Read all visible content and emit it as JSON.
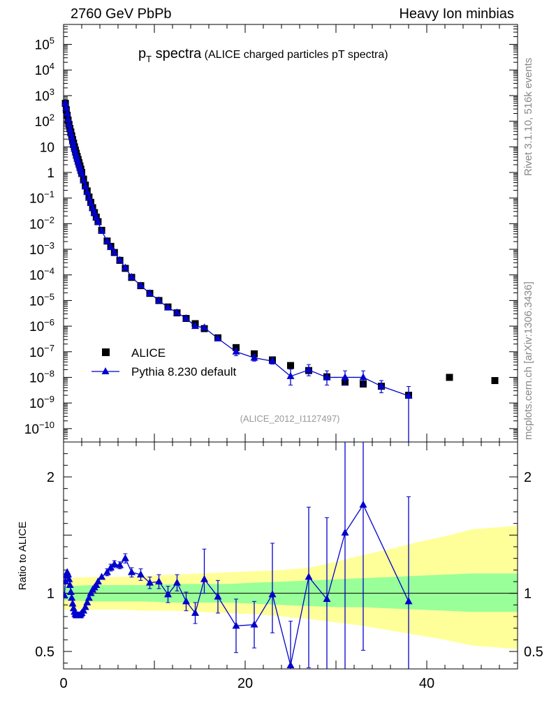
{
  "header": {
    "left": "2760 GeV PbPb",
    "right": "Heavy Ion minbias"
  },
  "side_labels": {
    "rivet": "Rivet 3.1.10,  516k events",
    "mcplots": "mcplots.cern.ch [arXiv:1306.3436]"
  },
  "colors": {
    "data": "#000000",
    "mc": "#0000cc",
    "band_inner": "#99ff99",
    "band_outer": "#ffff99"
  },
  "chart_data": [
    {
      "type": "scatter",
      "title_main": "p",
      "title_sub": "T",
      "title_main_suffix": " spectra",
      "title_paren": "(ALICE charged particles pT spectra)",
      "watermark": "(ALICE_2012_I1127497)",
      "yscale": "log",
      "xlim": [
        0,
        50
      ],
      "ylim": [
        3e-11,
        600000.0
      ],
      "yticks": [
        {
          "v": 100000.0,
          "m": "10",
          "e": "5"
        },
        {
          "v": 10000.0,
          "m": "10",
          "e": "4"
        },
        {
          "v": 1000.0,
          "m": "10",
          "e": "3"
        },
        {
          "v": 100.0,
          "m": "10",
          "e": "2"
        },
        {
          "v": 10,
          "m": "10",
          "e": ""
        },
        {
          "v": 1,
          "m": "1",
          "e": ""
        },
        {
          "v": 0.1,
          "m": "10",
          "e": "−1"
        },
        {
          "v": 0.01,
          "m": "10",
          "e": "−2"
        },
        {
          "v": 0.001,
          "m": "10",
          "e": "−3"
        },
        {
          "v": 0.0001,
          "m": "10",
          "e": "−4"
        },
        {
          "v": 1e-05,
          "m": "10",
          "e": "−5"
        },
        {
          "v": 1e-06,
          "m": "10",
          "e": "−6"
        },
        {
          "v": 1e-07,
          "m": "10",
          "e": "−7"
        },
        {
          "v": 1e-08,
          "m": "10",
          "e": "−8"
        },
        {
          "v": 1e-09,
          "m": "10",
          "e": "−9"
        },
        {
          "v": 1e-10,
          "m": "10",
          "e": "−10"
        }
      ],
      "legend": [
        "ALICE",
        "Pythia 8.230 default"
      ],
      "legend_position": "lower-left",
      "series": [
        {
          "name": "ALICE",
          "marker": "square",
          "x": [
            0.2,
            0.3,
            0.4,
            0.5,
            0.6,
            0.7,
            0.8,
            0.9,
            1.0,
            1.1,
            1.2,
            1.3,
            1.4,
            1.5,
            1.6,
            1.7,
            1.8,
            1.9,
            2.0,
            2.2,
            2.4,
            2.6,
            2.8,
            3.0,
            3.2,
            3.4,
            3.6,
            3.8,
            4.2,
            4.8,
            5.2,
            5.6,
            6.2,
            6.8,
            7.5,
            8.5,
            9.5,
            10.5,
            11.5,
            12.5,
            13.5,
            14.5,
            15.5,
            17.0,
            19.0,
            21.0,
            23.0,
            25.0,
            27.0,
            29.0,
            31.0,
            33.0,
            35.0,
            38.0,
            42.5,
            47.5
          ],
          "y": [
            500,
            280,
            170,
            110,
            75,
            52,
            38,
            27,
            19,
            14,
            10,
            7.5,
            5.6,
            4.2,
            3.2,
            2.4,
            1.8,
            1.35,
            1.0,
            0.55,
            0.32,
            0.19,
            0.11,
            0.068,
            0.042,
            0.027,
            0.018,
            0.012,
            0.0055,
            0.0021,
            0.0013,
            0.00075,
            0.00037,
            0.00018,
            8e-05,
            3.8e-05,
            1.9e-05,
            1e-05,
            5.6e-06,
            3.3e-06,
            2e-06,
            1.25e-06,
            8e-07,
            3.5e-07,
            1.45e-07,
            8.3e-08,
            4.8e-08,
            2.9e-08,
            1.85e-08,
            1.05e-08,
            6.5e-09,
            5.5e-09,
            4.5e-09,
            2e-09,
            1e-08,
            7.5e-09
          ]
        },
        {
          "name": "Pythia 8.230 default",
          "marker": "triangle",
          "line": true,
          "x": [
            0.2,
            0.3,
            0.4,
            0.5,
            0.6,
            0.7,
            0.8,
            0.9,
            1.0,
            1.1,
            1.2,
            1.3,
            1.4,
            1.5,
            1.6,
            1.7,
            1.8,
            1.9,
            2.0,
            2.2,
            2.4,
            2.6,
            2.8,
            3.0,
            3.2,
            3.4,
            3.6,
            3.8,
            4.2,
            4.8,
            5.2,
            5.6,
            6.2,
            6.8,
            7.5,
            8.5,
            9.5,
            10.5,
            11.5,
            12.5,
            13.5,
            14.5,
            15.5,
            17.0,
            19.0,
            21.0,
            23.0,
            25.0,
            27.0,
            29.0,
            31.0,
            33.0,
            35.0,
            38.0
          ],
          "y": [
            500,
            330,
            200,
            120,
            75,
            48,
            33,
            23,
            16,
            11.5,
            8.3,
            6,
            4.5,
            3.4,
            2.6,
            2,
            1.5,
            1.15,
            0.85,
            0.48,
            0.28,
            0.17,
            0.1,
            0.063,
            0.04,
            0.026,
            0.017,
            0.0115,
            0.0052,
            0.0021,
            0.0012,
            0.00076,
            0.00038,
            0.00019,
            8.2e-05,
            3.8e-05,
            1.9e-05,
            1e-05,
            5.3e-06,
            3.4e-06,
            2e-06,
            1e-06,
            8.7e-07,
            3.3e-07,
            1e-07,
            5.8e-08,
            4.3e-08,
            1.1e-08,
            1.95e-08,
            1e-08,
            1e-08,
            1e-08,
            4.5e-09,
            1.9e-09
          ],
          "yerr_lo": [
            0,
            0,
            0,
            0,
            0,
            0,
            0,
            0,
            0,
            0,
            0,
            0,
            0,
            0,
            0,
            0,
            0,
            0,
            0,
            0,
            0,
            0,
            0,
            0,
            0,
            0,
            0,
            0,
            0,
            0,
            0,
            0,
            0,
            0,
            0,
            0,
            0,
            0,
            0,
            0,
            0,
            0,
            0,
            0,
            3e-08,
            1.5e-08,
            1e-08,
            6e-09,
            8e-09,
            5e-09,
            5e-09,
            5e-09,
            2e-09,
            1.9e-09
          ],
          "yerr_hi": [
            0,
            0,
            0,
            0,
            0,
            0,
            0,
            0,
            0,
            0,
            0,
            0,
            0,
            0,
            0,
            0,
            0,
            0,
            0,
            0,
            0,
            0,
            0,
            0,
            0,
            0,
            0,
            0,
            0,
            0,
            0,
            0,
            0,
            0,
            0,
            0,
            0,
            0,
            0,
            0,
            0,
            0,
            0,
            0,
            4e-08,
            2e-08,
            1.5e-08,
            1e-08,
            1.2e-08,
            8e-09,
            8e-09,
            8e-09,
            3e-09,
            2.5e-09
          ]
        }
      ]
    },
    {
      "type": "line",
      "ylabel": "Ratio to ALICE",
      "xlim": [
        0,
        50
      ],
      "ylim": [
        0.35,
        2.3
      ],
      "xticks": [
        0,
        20,
        40
      ],
      "yticks": [
        0.5,
        1,
        2
      ],
      "reference_line": 1,
      "band_x": [
        0,
        3,
        6,
        9,
        12,
        15,
        18,
        21,
        24,
        27,
        30,
        33,
        36,
        39,
        42,
        45,
        50
      ],
      "band_inner_lo": [
        0.94,
        0.93,
        0.93,
        0.93,
        0.92,
        0.92,
        0.92,
        0.91,
        0.9,
        0.89,
        0.88,
        0.88,
        0.87,
        0.86,
        0.85,
        0.84,
        0.84
      ],
      "band_inner_hi": [
        1.06,
        1.07,
        1.07,
        1.07,
        1.08,
        1.08,
        1.08,
        1.09,
        1.1,
        1.11,
        1.12,
        1.13,
        1.14,
        1.15,
        1.16,
        1.17,
        1.17
      ],
      "band_outer_lo": [
        0.86,
        0.86,
        0.86,
        0.85,
        0.85,
        0.84,
        0.83,
        0.82,
        0.8,
        0.78,
        0.75,
        0.72,
        0.68,
        0.64,
        0.6,
        0.55,
        0.52
      ],
      "band_outer_hi": [
        1.13,
        1.14,
        1.14,
        1.15,
        1.16,
        1.17,
        1.18,
        1.19,
        1.2,
        1.22,
        1.27,
        1.33,
        1.38,
        1.44,
        1.49,
        1.55,
        1.58
      ],
      "series": [
        {
          "name": "Pythia 8.230 default",
          "x": [
            0.1,
            0.2,
            0.3,
            0.4,
            0.5,
            0.6,
            0.7,
            0.8,
            0.9,
            1.0,
            1.1,
            1.2,
            1.3,
            1.4,
            1.5,
            1.6,
            1.7,
            1.8,
            1.9,
            2.0,
            2.2,
            2.4,
            2.6,
            2.8,
            3.0,
            3.2,
            3.4,
            3.6,
            3.8,
            4.2,
            4.8,
            5.2,
            5.6,
            6.2,
            6.8,
            7.5,
            8.5,
            9.5,
            10.5,
            11.5,
            12.5,
            13.5,
            14.5,
            15.5,
            17.0,
            19.0,
            21.0,
            23.0,
            25.0,
            27.0,
            29.0,
            31.0,
            33.0,
            38.0
          ],
          "y": [
            0.98,
            1.1,
            1.15,
            1.18,
            1.16,
            1.12,
            1.07,
            1.01,
            0.96,
            0.91,
            0.87,
            0.84,
            0.82,
            0.81,
            0.81,
            0.81,
            0.81,
            0.81,
            0.82,
            0.83,
            0.85,
            0.88,
            0.92,
            0.96,
            1.0,
            1.03,
            1.05,
            1.07,
            1.1,
            1.14,
            1.18,
            1.22,
            1.25,
            1.24,
            1.3,
            1.18,
            1.16,
            1.09,
            1.1,
            0.99,
            1.09,
            0.93,
            0.83,
            1.12,
            0.97,
            0.72,
            0.73,
            0.99,
            0.38,
            1.14,
            0.95,
            1.52,
            1.76,
            0.93
          ],
          "yerr_lo": [
            0.02,
            0.02,
            0.02,
            0.02,
            0.02,
            0.02,
            0.02,
            0.02,
            0.02,
            0.02,
            0.02,
            0.02,
            0.02,
            0.02,
            0.02,
            0.02,
            0.02,
            0.02,
            0.02,
            0.02,
            0.02,
            0.02,
            0.02,
            0.02,
            0.02,
            0.02,
            0.02,
            0.02,
            0.02,
            0.02,
            0.03,
            0.03,
            0.03,
            0.03,
            0.04,
            0.04,
            0.05,
            0.05,
            0.06,
            0.07,
            0.07,
            0.08,
            0.09,
            0.12,
            0.14,
            0.23,
            0.2,
            0.33,
            0.38,
            0.78,
            0.6,
            1.2,
            1.25,
            0.6
          ],
          "yerr_hi": [
            0.02,
            0.02,
            0.02,
            0.02,
            0.02,
            0.02,
            0.02,
            0.02,
            0.02,
            0.02,
            0.02,
            0.02,
            0.02,
            0.02,
            0.02,
            0.02,
            0.02,
            0.02,
            0.02,
            0.02,
            0.02,
            0.02,
            0.02,
            0.02,
            0.02,
            0.02,
            0.02,
            0.02,
            0.02,
            0.02,
            0.03,
            0.03,
            0.03,
            0.03,
            0.04,
            0.04,
            0.05,
            0.05,
            0.06,
            0.07,
            0.07,
            0.08,
            0.09,
            0.26,
            0.14,
            0.23,
            0.2,
            0.44,
            0.38,
            0.6,
            0.7,
            0.8,
            0.6,
            0.9
          ]
        }
      ]
    }
  ]
}
